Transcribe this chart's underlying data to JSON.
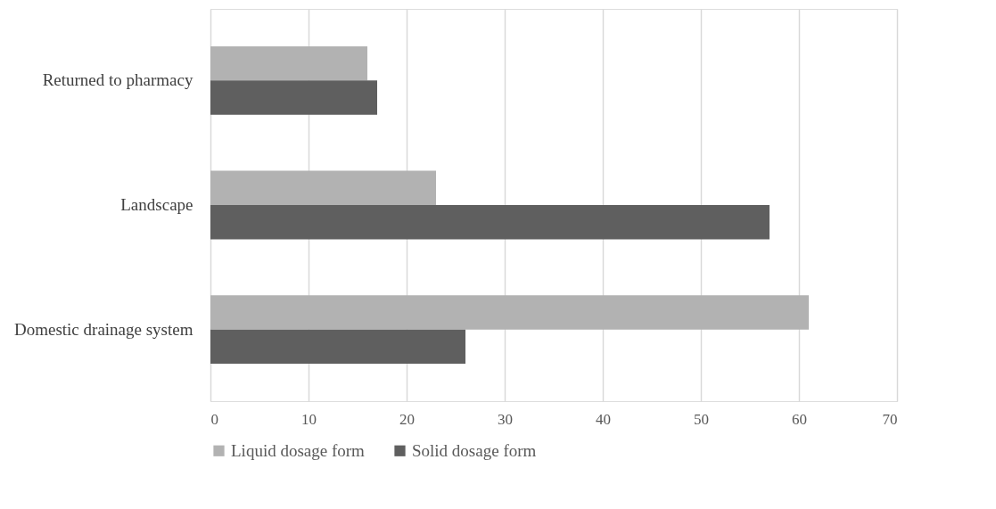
{
  "chart_data": {
    "type": "bar",
    "orientation": "horizontal",
    "categories": [
      "Returned to pharmacy",
      "Landscape",
      "Domestic drainage system"
    ],
    "series": [
      {
        "name": "Liquid dosage form",
        "color": "#b2b2b2",
        "values": [
          16,
          23,
          61
        ]
      },
      {
        "name": "Solid dosage form",
        "color": "#5f5f5f",
        "values": [
          17,
          57,
          26
        ]
      }
    ],
    "xlim": [
      0,
      70
    ],
    "xticks": [
      0,
      10,
      20,
      30,
      40,
      50,
      60,
      70
    ],
    "grid": "x",
    "legend": "bottom"
  }
}
